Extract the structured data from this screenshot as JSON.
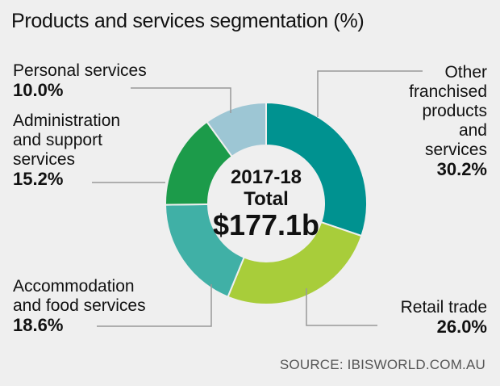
{
  "chart_data": {
    "type": "pie",
    "title": "Products and services segmentation (%)",
    "center_label": {
      "line1": "2017-18",
      "line2": "Total",
      "line3": "$177.1b"
    },
    "categories": [
      "Other franchised products and services",
      "Retail trade",
      "Accommodation and food services",
      "Administration and support services",
      "Personal services"
    ],
    "values": [
      30.2,
      26.0,
      18.6,
      15.2,
      10.0
    ],
    "value_labels": [
      "30.2%",
      "26.0%",
      "18.6%",
      "15.2%",
      "10.0%"
    ],
    "label_lines": [
      [
        "Other",
        "franchised",
        "products",
        "and",
        "services"
      ],
      [
        "Retail trade"
      ],
      [
        "Accommodation",
        "and food services"
      ],
      [
        "Administration",
        "and support",
        "services"
      ],
      [
        "Personal services"
      ]
    ],
    "colors": [
      "#009290",
      "#a8cd3a",
      "#40b0a6",
      "#1c9b4a",
      "#9dc6d4"
    ]
  },
  "source": "SOURCE: IBISWORLD.COM.AU"
}
